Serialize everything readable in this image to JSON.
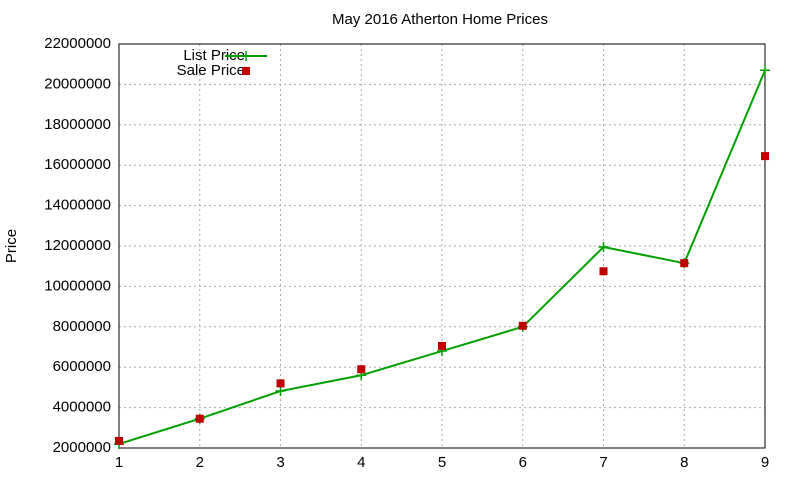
{
  "chart_data": {
    "type": "line",
    "title": "May 2016 Atherton Home Prices",
    "y_label": "Price",
    "x": [
      1,
      2,
      3,
      4,
      5,
      6,
      7,
      8,
      9
    ],
    "series": [
      {
        "name": "List Price",
        "color": "#00a000",
        "style": "line-plus",
        "values": [
          2200000,
          3450000,
          4820000,
          5600000,
          6800000,
          8000000,
          11950000,
          11150000,
          20700000
        ]
      },
      {
        "name": "Sale Price",
        "color": "#c00000",
        "style": "square",
        "values": [
          2350000,
          3450000,
          5200000,
          5900000,
          7050000,
          8050000,
          10750000,
          11150000,
          16450000
        ]
      }
    ],
    "xlim": [
      1,
      9
    ],
    "xticks": [
      1,
      2,
      3,
      4,
      5,
      6,
      7,
      8,
      9
    ],
    "ylim": [
      2000000,
      22000000
    ],
    "yticks": [
      2000000,
      4000000,
      6000000,
      8000000,
      10000000,
      12000000,
      14000000,
      16000000,
      18000000,
      20000000,
      22000000
    ],
    "grid": true,
    "legend": "top-left"
  }
}
